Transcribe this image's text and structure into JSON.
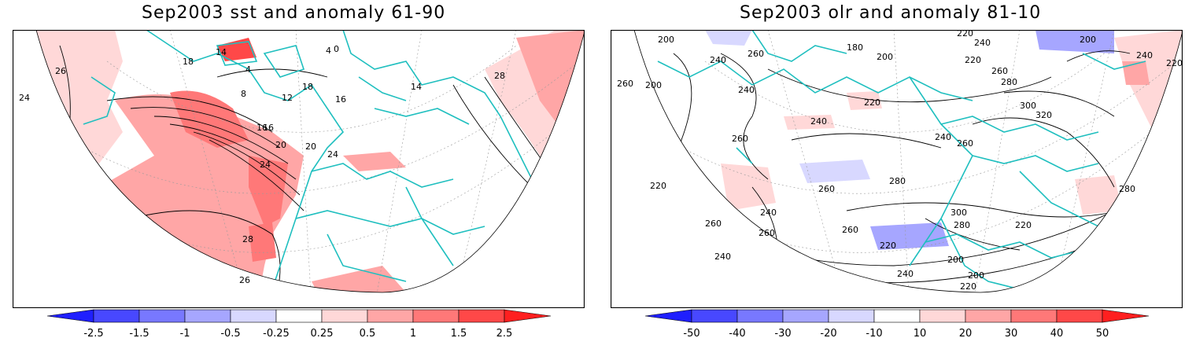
{
  "panels": [
    {
      "title": "Sep2003 sst and anomaly 61-90",
      "contour_labels": [
        "24",
        "26",
        "16",
        "14",
        "8",
        "4",
        "0",
        "18",
        "12",
        "16",
        "20",
        "24",
        "28",
        "26",
        "28",
        "20",
        "24",
        "14",
        "16",
        "18",
        "4"
      ],
      "colorbar": {
        "ticks": [
          "-2.5",
          "-1.5",
          "-1",
          "-0.5",
          "-0.25",
          "0.25",
          "0.5",
          "1",
          "1.5",
          "2.5"
        ],
        "colors": [
          "#1f1fff",
          "#4848ff",
          "#7878ff",
          "#a6a6ff",
          "#d8d8ff",
          "#ffffff",
          "#ffd8d8",
          "#ffa6a6",
          "#ff7878",
          "#ff4848",
          "#ff1f1f"
        ]
      }
    },
    {
      "title": "Sep2003 olr and anomaly 81-10",
      "contour_labels": [
        "200",
        "260",
        "180",
        "200",
        "220",
        "240",
        "220",
        "200",
        "240",
        "220",
        "260",
        "200",
        "240",
        "240",
        "220",
        "240",
        "300",
        "320",
        "280",
        "260",
        "240",
        "260",
        "260",
        "220",
        "260",
        "280",
        "300",
        "280",
        "220",
        "240",
        "220",
        "200",
        "240",
        "260",
        "220",
        "280",
        "260",
        "240",
        "260",
        "200"
      ],
      "colorbar": {
        "ticks": [
          "-50",
          "-40",
          "-30",
          "-20",
          "-10",
          "10",
          "20",
          "30",
          "40",
          "50"
        ],
        "colors": [
          "#1f1fff",
          "#4848ff",
          "#7878ff",
          "#a6a6ff",
          "#d8d8ff",
          "#ffffff",
          "#ffd8d8",
          "#ffa6a6",
          "#ff7878",
          "#ff4848",
          "#ff1f1f"
        ]
      }
    }
  ],
  "colors": {
    "coastline": "#1fbfbf",
    "contour": "#000000",
    "graticule": "#9a9a9a"
  }
}
